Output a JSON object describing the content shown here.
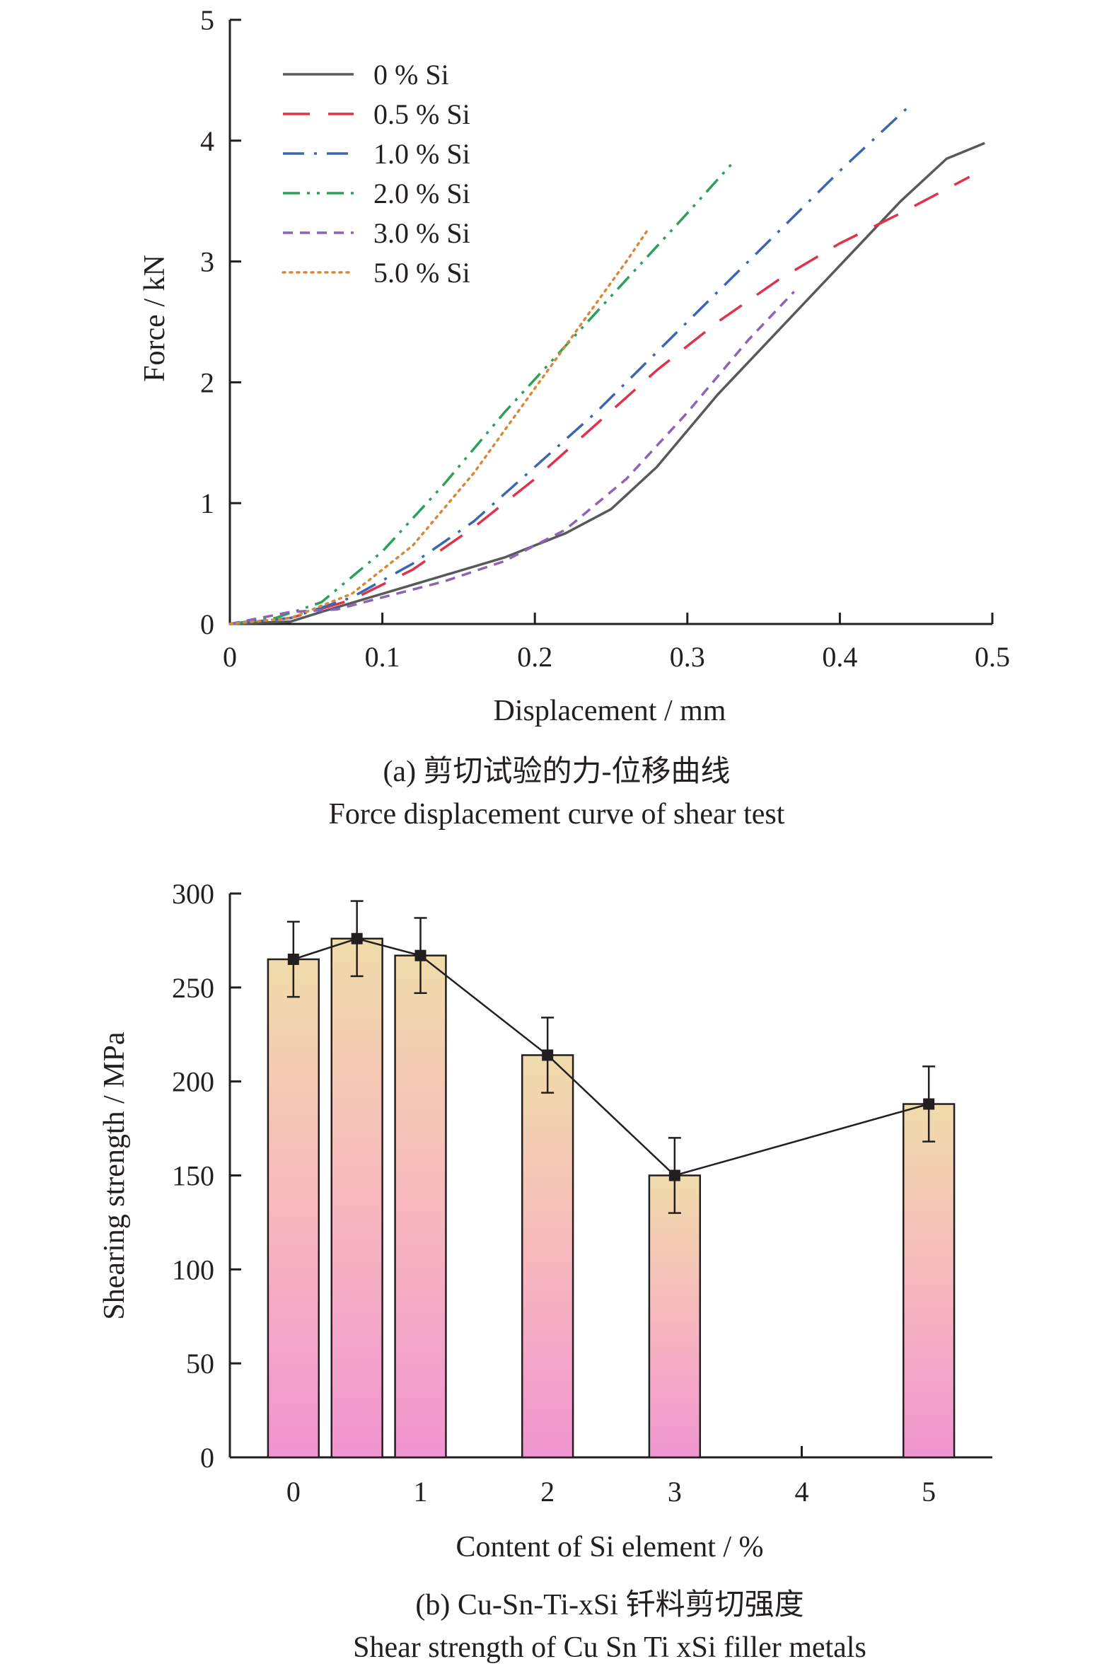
{
  "figure": {
    "panel_a": {
      "caption_cn": "(a) 剪切试验的力-位移曲线",
      "caption_en": "Force displacement curve of shear test"
    },
    "panel_b": {
      "caption_cn": "(b) Cu-Sn-Ti-xSi 钎料剪切强度",
      "caption_en": "Shear strength of Cu Sn Ti xSi filler metals"
    }
  },
  "chart_data": [
    {
      "type": "line",
      "xlabel": "Displacement / mm",
      "ylabel": "Force / kN",
      "xlim": [
        0,
        0.5
      ],
      "ylim": [
        0,
        5
      ],
      "xticks": [
        "0",
        "0.1",
        "0.2",
        "0.3",
        "0.4",
        "0.5"
      ],
      "yticks": [
        "0",
        "1",
        "2",
        "3",
        "4",
        "5"
      ],
      "grid": false,
      "legend_position": "top-left",
      "series": [
        {
          "name": "0 % Si",
          "color": "#58595b",
          "dash": "solid",
          "x": [
            0,
            0.04,
            0.06,
            0.1,
            0.14,
            0.18,
            0.22,
            0.25,
            0.28,
            0.3,
            0.32,
            0.35,
            0.38,
            0.41,
            0.44,
            0.47,
            0.495
          ],
          "y": [
            0,
            0.02,
            0.1,
            0.25,
            0.4,
            0.55,
            0.75,
            0.95,
            1.3,
            1.6,
            1.9,
            2.3,
            2.7,
            3.1,
            3.5,
            3.85,
            3.98
          ]
        },
        {
          "name": "0.5 % Si",
          "color": "#e0324b",
          "dash": "long-dash",
          "x": [
            0,
            0.04,
            0.08,
            0.12,
            0.16,
            0.2,
            0.24,
            0.28,
            0.32,
            0.36,
            0.4,
            0.44,
            0.485
          ],
          "y": [
            0,
            0.05,
            0.2,
            0.45,
            0.8,
            1.2,
            1.65,
            2.1,
            2.5,
            2.85,
            3.15,
            3.4,
            3.7
          ]
        },
        {
          "name": "1.0 % Si",
          "color": "#3a67b1",
          "dash": "dash-dot",
          "x": [
            0,
            0.04,
            0.08,
            0.12,
            0.16,
            0.2,
            0.24,
            0.28,
            0.32,
            0.36,
            0.4,
            0.445
          ],
          "y": [
            0,
            0.05,
            0.22,
            0.5,
            0.85,
            1.3,
            1.75,
            2.25,
            2.75,
            3.25,
            3.75,
            4.28
          ]
        },
        {
          "name": "2.0 % Si",
          "color": "#2ca05a",
          "dash": "dash-dot-dot",
          "x": [
            0,
            0.03,
            0.06,
            0.1,
            0.14,
            0.18,
            0.22,
            0.26,
            0.3,
            0.33
          ],
          "y": [
            0,
            0.05,
            0.18,
            0.6,
            1.15,
            1.75,
            2.3,
            2.85,
            3.4,
            3.82
          ]
        },
        {
          "name": "3.0 % Si",
          "color": "#8c63b8",
          "dash": "short-dash",
          "x": [
            0,
            0.04,
            0.07,
            0.1,
            0.14,
            0.18,
            0.22,
            0.26,
            0.3,
            0.34,
            0.37
          ],
          "y": [
            0,
            0.1,
            0.12,
            0.22,
            0.35,
            0.52,
            0.78,
            1.2,
            1.75,
            2.35,
            2.75
          ]
        },
        {
          "name": "5.0 % Si",
          "color": "#d7893a",
          "dash": "dotted",
          "x": [
            0,
            0.04,
            0.08,
            0.12,
            0.16,
            0.2,
            0.24,
            0.26,
            0.275
          ],
          "y": [
            0,
            0.05,
            0.25,
            0.65,
            1.25,
            1.95,
            2.65,
            3.0,
            3.28
          ]
        }
      ]
    },
    {
      "type": "bar",
      "xlabel": "Content of Si element / %",
      "ylabel": "Shearing strength / MPa",
      "xlim": [
        -0.5,
        5.5
      ],
      "ylim": [
        0,
        300
      ],
      "xticks": [
        "0",
        "1",
        "2",
        "3",
        "4",
        "5"
      ],
      "yticks": [
        "0",
        "50",
        "100",
        "150",
        "200",
        "250",
        "300"
      ],
      "grid": false,
      "x": [
        0,
        0.5,
        1,
        2,
        3,
        5
      ],
      "values": [
        265,
        276,
        267,
        214,
        150,
        188
      ],
      "error": [
        20,
        20,
        20,
        20,
        20,
        20
      ],
      "bar_gradient": [
        "#f0dcaa",
        "#f7b8be",
        "#f095d0"
      ],
      "line_color": "#231f20"
    }
  ]
}
